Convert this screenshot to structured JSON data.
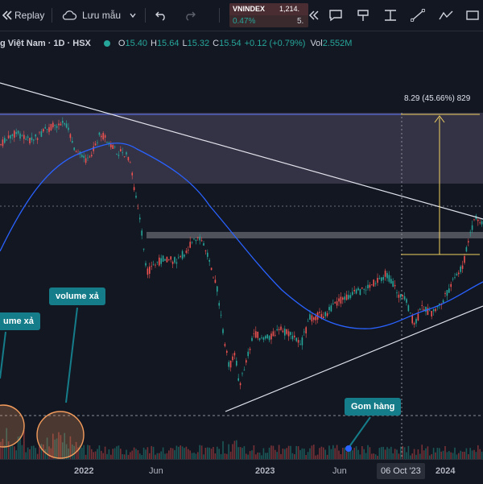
{
  "toolbar": {
    "replay_label": "Replay",
    "save_label": "Lưu mẫu"
  },
  "ticker": {
    "symbol": "VNINDEX",
    "price": "1,214.",
    "change_pct": "0.47%",
    "value": "5."
  },
  "legend": {
    "title": "g Việt Nam · 1D · HSX",
    "o_label": "O",
    "o_value": "15.40",
    "h_label": "H",
    "h_value": "15.64",
    "l_label": "L",
    "l_value": "15.32",
    "c_label": "C",
    "c_value": "15.54",
    "change": "+0.12 (+0.79%)",
    "vol_label": "Vol",
    "vol_value": "2.552M"
  },
  "annotations": {
    "measure": "8.29 (45.66%) 829",
    "volume_left": "ume xả",
    "volume_mid": "volume xả",
    "gom": "Gom hàng"
  },
  "xaxis": {
    "labels": [
      "2022",
      "Jun",
      "2023",
      "Jun",
      "2024"
    ],
    "highlight": "06 Oct '23"
  },
  "colors": {
    "background": "#131722",
    "up": "#26a69a",
    "down": "#ef5350",
    "ma": "#2962ff",
    "callout": "#157d8a",
    "zone": "#5d5470"
  }
}
